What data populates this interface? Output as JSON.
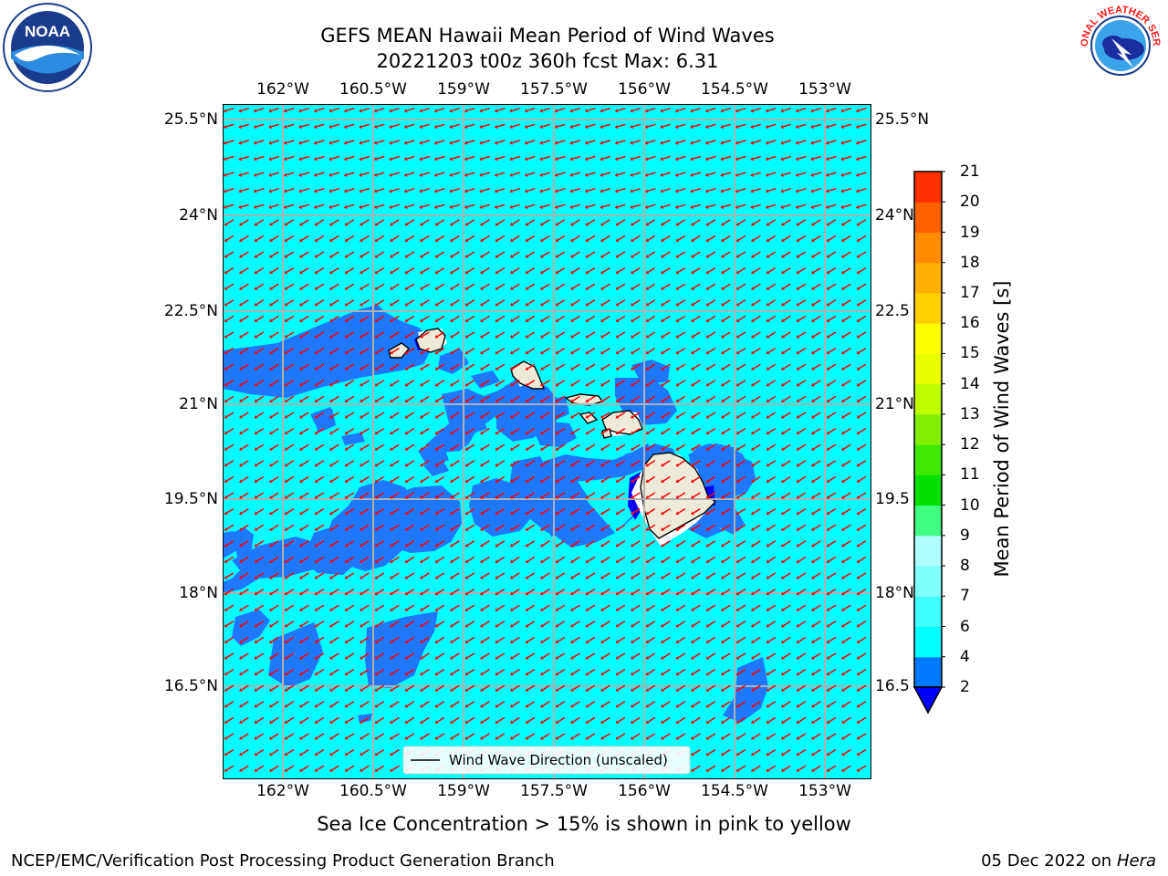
{
  "title": {
    "line1": "GEFS MEAN Hawaii Mean Period of Wind Waves",
    "line2": "20221203 t00z 360h fcst   Max: 6.31"
  },
  "map": {
    "lon_ticks": [
      "162°W",
      "160.5°W",
      "159°W",
      "157.5°W",
      "156°W",
      "154.5°W",
      "153°W"
    ],
    "lat_ticks": [
      "25.5°N",
      "24°N",
      "22.5°N",
      "21°N",
      "19.5°N",
      "18°N",
      "16.5°N"
    ],
    "lat_ticks_right": [
      "25.5°N",
      "24°N",
      "22.5",
      "21°N",
      "19.5",
      "18°N",
      "16.5"
    ],
    "legend_label": "Wind Wave Direction (unscaled)",
    "colors": {
      "ocean": "#00ffff",
      "low_period": "#1e78ff",
      "arrows": "#ff0000",
      "land": "#eeead8",
      "grid": "#b0b0b0"
    }
  },
  "colorbar": {
    "label": "Mean Period of Wind Waves [s]",
    "levels": [
      "2",
      "4",
      "6",
      "7",
      "8",
      "9",
      "10",
      "11",
      "12",
      "13",
      "14",
      "15",
      "16",
      "17",
      "18",
      "19",
      "20",
      "21"
    ],
    "colors": [
      "#0078ff",
      "#00ffff",
      "#40ffff",
      "#80ffff",
      "#b0ffff",
      "#40ff80",
      "#00e000",
      "#40e800",
      "#80f000",
      "#c0ff00",
      "#e8ff00",
      "#ffff00",
      "#ffd000",
      "#ffb000",
      "#ff8c00",
      "#ff6000",
      "#ff3000",
      "#ff0000"
    ],
    "under_color": "#0000ff"
  },
  "notes": {
    "sea_ice": "Sea Ice Concentration > 15% is shown in pink to yellow",
    "credit": "NCEP/EMC/Verification Post Processing Product Generation Branch",
    "date": "05 Dec 2022 on",
    "machine": "Hera"
  },
  "logos": {
    "left": "NOAA",
    "right": "NATIONAL WEATHER SERVICE"
  }
}
